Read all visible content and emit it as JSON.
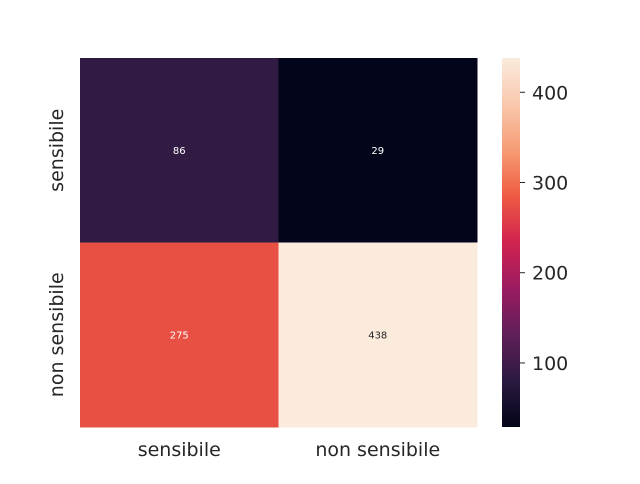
{
  "chart_data": {
    "type": "heatmap",
    "rows": [
      "sensibile",
      "non sensibile"
    ],
    "columns": [
      "sensibile",
      "non sensibile"
    ],
    "values": [
      [
        86,
        29
      ],
      [
        275,
        438
      ]
    ],
    "value_labels": [
      [
        "86",
        "29"
      ],
      [
        "275",
        "438"
      ]
    ],
    "colorbar": {
      "range": [
        29,
        438
      ],
      "ticks": [
        100,
        200,
        300,
        400
      ],
      "tick_labels": [
        "100",
        "200",
        "300",
        "400"
      ],
      "colormap": "rocket"
    },
    "title": "",
    "xlabel": "",
    "ylabel": "",
    "grid": false,
    "legend": "colorbar-right"
  },
  "colors": {
    "colormap_stops": [
      "#03051a",
      "#2b1a40",
      "#5f1f58",
      "#9b1b61",
      "#d0234f",
      "#ef5a42",
      "#f69c74",
      "#f9c8ad",
      "#faebdd"
    ],
    "dark_text": "#262626",
    "light_text": "#ffffff"
  }
}
